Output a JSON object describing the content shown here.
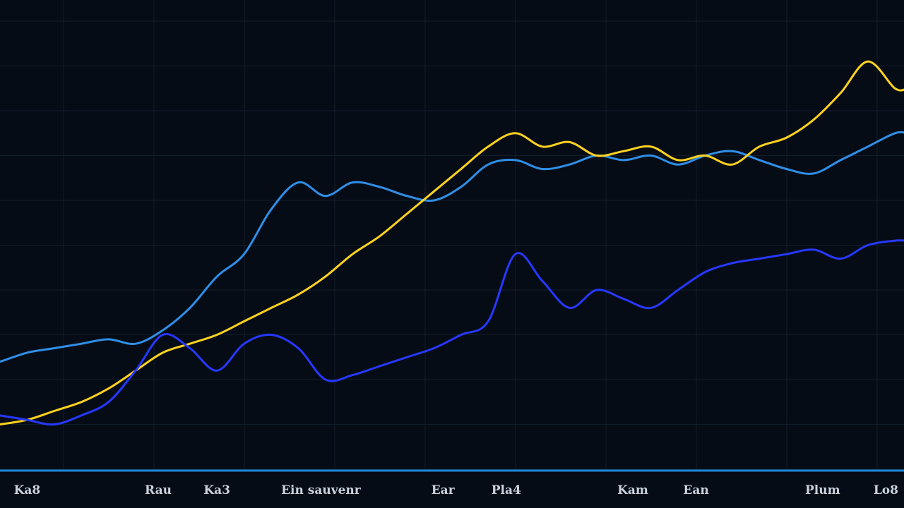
{
  "chart_data": {
    "type": "line",
    "title": "",
    "xlabel": "",
    "ylabel": "",
    "grid": true,
    "background": "#060c16",
    "axis_color": "#1f86d6",
    "x": [
      0,
      0.3,
      0.6,
      0.9,
      1.2,
      1.5,
      1.8,
      2.1,
      2.4,
      2.7,
      3.0,
      3.3,
      3.6,
      3.9,
      4.2,
      4.5,
      4.8,
      5.1,
      5.4,
      5.7,
      6.0,
      6.3,
      6.6,
      6.9,
      7.2,
      7.5,
      7.8,
      8.1,
      8.4,
      8.7,
      9.0,
      9.3,
      9.6,
      9.9
    ],
    "xlim": [
      0,
      10
    ],
    "ylim": [
      0,
      100
    ],
    "x_ticks": [
      {
        "x": 0.3,
        "label": "Ka8"
      },
      {
        "x": 1.75,
        "label": "Rau"
      },
      {
        "x": 2.4,
        "label": "Ka3"
      },
      {
        "x": 3.55,
        "label": "Ein sauvenr"
      },
      {
        "x": 4.9,
        "label": "Ear"
      },
      {
        "x": 5.6,
        "label": "Pla4"
      },
      {
        "x": 7.0,
        "label": "Kam"
      },
      {
        "x": 7.7,
        "label": "Ean"
      },
      {
        "x": 9.1,
        "label": "Plum"
      },
      {
        "x": 9.8,
        "label": "Lo8"
      }
    ],
    "series": [
      {
        "color": "#2f8fe8",
        "values": [
          24,
          26,
          27,
          28,
          29,
          28,
          31,
          36,
          43,
          48,
          58,
          64,
          61,
          64,
          63,
          61,
          60,
          63,
          68,
          69,
          67,
          68,
          70,
          69,
          70,
          68,
          70,
          71,
          69,
          67,
          66,
          69,
          72,
          75
        ]
      },
      {
        "color": "#ffd21f",
        "values": [
          10,
          11,
          13,
          15,
          18,
          22,
          26,
          28,
          30,
          33,
          36,
          39,
          43,
          48,
          52,
          57,
          62,
          67,
          72,
          75,
          72,
          73,
          70,
          71,
          72,
          69,
          70,
          68,
          72,
          74,
          78,
          84,
          91,
          85
        ]
      },
      {
        "color": "#2638ff",
        "values": [
          12,
          11,
          10,
          12,
          15,
          22,
          30,
          27,
          22,
          28,
          30,
          27,
          20,
          21,
          23,
          25,
          27,
          30,
          33,
          48,
          42,
          36,
          40,
          38,
          36,
          40,
          44,
          46,
          47,
          48,
          49,
          47,
          50,
          51
        ]
      }
    ]
  }
}
